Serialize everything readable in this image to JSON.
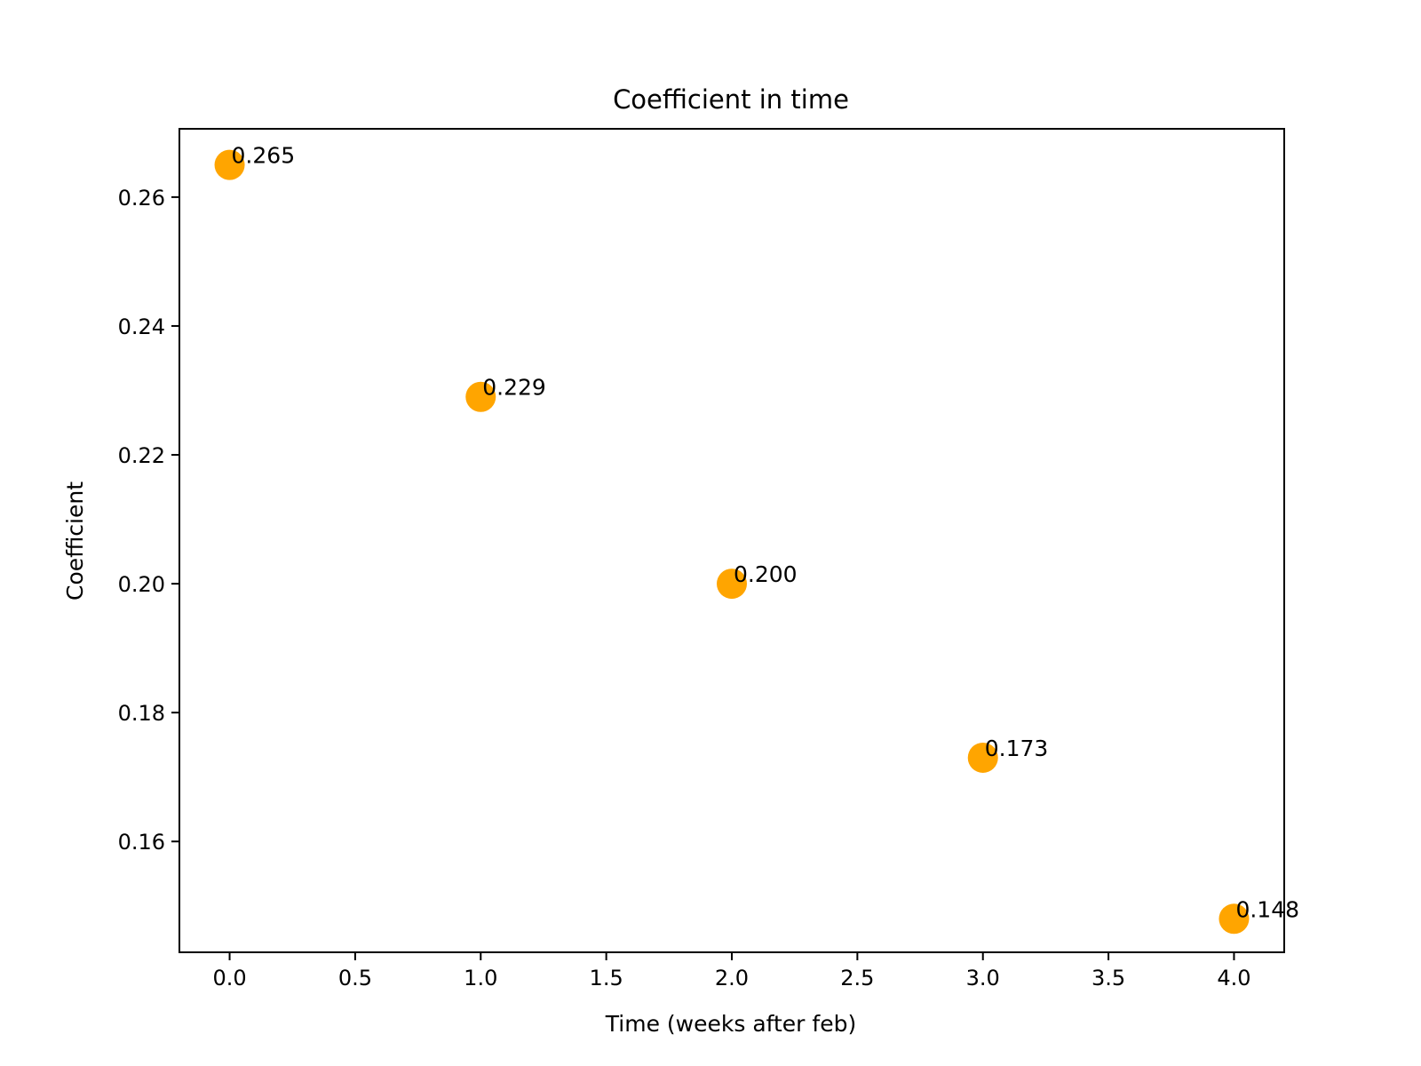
{
  "chart_data": {
    "type": "scatter",
    "title": "Coefficient in time",
    "xlabel": "Time (weeks after feb)",
    "ylabel": "Coefficient",
    "xlim": [
      -0.2,
      4.2
    ],
    "ylim": [
      0.1428,
      0.2706
    ],
    "xticks": [
      "0.0",
      "0.5",
      "1.0",
      "1.5",
      "2.0",
      "2.5",
      "3.0",
      "3.5",
      "4.0"
    ],
    "yticks": [
      "0.16",
      "0.18",
      "0.20",
      "0.22",
      "0.24",
      "0.26"
    ],
    "grid": false,
    "marker_color": "#ffa500",
    "points": [
      {
        "x": 0,
        "y": 0.265,
        "label": "0.265"
      },
      {
        "x": 1,
        "y": 0.229,
        "label": "0.229"
      },
      {
        "x": 2,
        "y": 0.2,
        "label": "0.200"
      },
      {
        "x": 3,
        "y": 0.173,
        "label": "0.173"
      },
      {
        "x": 4,
        "y": 0.148,
        "label": "0.148"
      }
    ]
  }
}
